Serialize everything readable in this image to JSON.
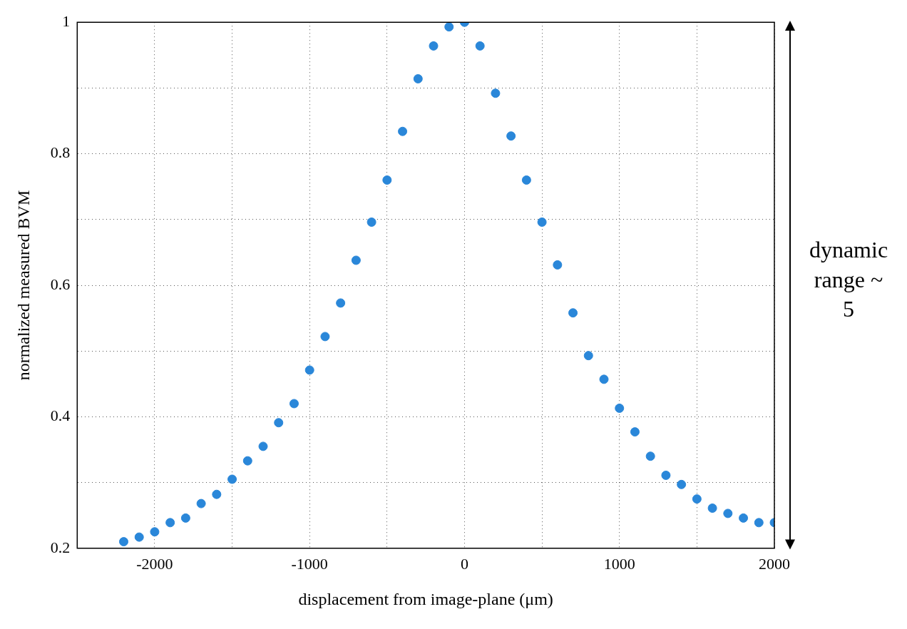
{
  "chart_data": {
    "type": "scatter",
    "xlabel": "displacement from image-plane (μm)",
    "ylabel": "normalized measured BVM",
    "x": [
      -2200,
      -2100,
      -2000,
      -1900,
      -1800,
      -1700,
      -1600,
      -1500,
      -1400,
      -1300,
      -1200,
      -1100,
      -1000,
      -900,
      -800,
      -700,
      -600,
      -500,
      -400,
      -300,
      -200,
      -100,
      0,
      100,
      200,
      300,
      400,
      500,
      600,
      700,
      800,
      900,
      1000,
      1100,
      1200,
      1300,
      1400,
      1500,
      1600,
      1700,
      1800,
      1900,
      2000
    ],
    "series": [
      {
        "color": "#2a87d9",
        "values": [
          0.21,
          0.217,
          0.225,
          0.239,
          0.246,
          0.268,
          0.282,
          0.305,
          0.333,
          0.355,
          0.391,
          0.42,
          0.471,
          0.522,
          0.573,
          0.638,
          0.696,
          0.76,
          0.834,
          0.914,
          0.964,
          0.993,
          1,
          0.964,
          0.892,
          0.827,
          0.76,
          0.696,
          0.631,
          0.558,
          0.493,
          0.457,
          0.413,
          0.377,
          0.34,
          0.311,
          0.297,
          0.275,
          0.261,
          0.253,
          0.246,
          0.239,
          0.239
        ]
      }
    ],
    "xlim": [
      -2500,
      2000
    ],
    "xticks": [
      {
        "value": -2500,
        "label": null
      },
      -2000,
      {
        "value": -1500,
        "label": null
      },
      -1000,
      {
        "value": -500,
        "label": null
      },
      0,
      {
        "value": 500,
        "label": null
      },
      1000,
      {
        "value": 1500,
        "label": null
      },
      2000
    ],
    "ylim": [
      0.2,
      1
    ],
    "yticks": [
      0.2,
      {
        "value": 0.3,
        "label": null
      },
      0.4,
      {
        "value": 0.5,
        "label": null
      },
      0.6,
      {
        "value": 0.7,
        "label": null
      },
      0.8,
      {
        "value": 0.9,
        "label": null
      },
      1
    ],
    "grid": true,
    "line_style": "dotted",
    "marker": "circle",
    "legend": false,
    "annotations": [
      "dynamic range ~ 5"
    ]
  }
}
